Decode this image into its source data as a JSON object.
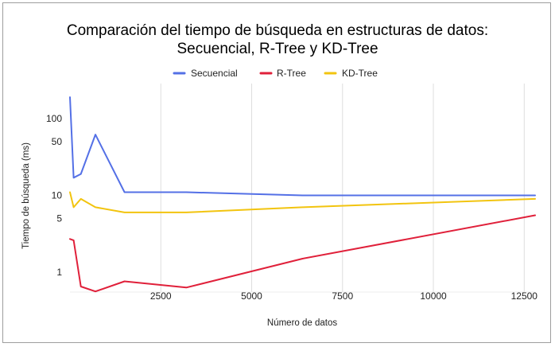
{
  "chart_data": {
    "type": "line",
    "title_line1": "Comparación del tiempo de búsqueda en estructuras de datos:",
    "title_line2": "Secuencial, R-Tree y KD-Tree",
    "xlabel": "Número de datos",
    "ylabel": "Tiempo de búsqueda (ms)",
    "xlim": [
      0,
      12800
    ],
    "ylim": [
      0.55,
      200
    ],
    "y_scale": "log",
    "x_ticks": [
      2500,
      5000,
      7500,
      10000,
      12500
    ],
    "x_tick_labels": [
      "2500",
      "5000",
      "7500",
      "10000",
      "12500"
    ],
    "y_ticks": [
      1,
      5,
      10,
      50,
      100
    ],
    "y_tick_labels": [
      "1",
      "5",
      "10",
      "50",
      "100"
    ],
    "grid": "vertical",
    "legend_position": "top",
    "series": [
      {
        "name": "Secuencial",
        "color": "#5470e6",
        "x": [
          0,
          100,
          300,
          700,
          1500,
          3200,
          6400,
          12800
        ],
        "y": [
          190,
          17,
          19,
          62,
          11,
          11,
          10,
          10
        ]
      },
      {
        "name": "R-Tree",
        "color": "#e0203a",
        "x": [
          0,
          100,
          300,
          700,
          1500,
          3200,
          6400,
          12800
        ],
        "y": [
          2.7,
          2.6,
          0.65,
          0.56,
          0.76,
          0.63,
          1.5,
          5.5
        ]
      },
      {
        "name": "KD-Tree",
        "color": "#f2c40f",
        "x": [
          0,
          100,
          300,
          700,
          1500,
          3200,
          6400,
          12800
        ],
        "y": [
          11,
          7,
          9,
          7,
          6,
          6,
          7,
          9
        ]
      }
    ]
  }
}
